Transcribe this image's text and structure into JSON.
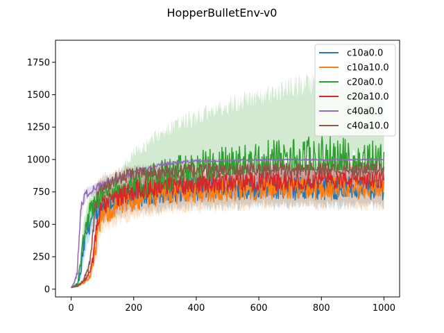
{
  "chart_data": {
    "type": "line",
    "title": "HopperBulletEnv-v0",
    "xlabel": "",
    "ylabel": "",
    "xlim": [
      -50,
      1050
    ],
    "ylim": [
      -60,
      1920
    ],
    "xticks": [
      0,
      200,
      400,
      600,
      800,
      1000
    ],
    "yticks": [
      0,
      250,
      500,
      750,
      1000,
      1250,
      1500,
      1750
    ],
    "grid": false,
    "legend_position": "top-right",
    "series": [
      {
        "name": "c10a0.0",
        "color": "#1f77b4",
        "x": [
          0,
          20,
          30,
          40,
          50,
          60,
          70,
          80,
          100,
          150,
          200,
          300,
          400,
          500,
          600,
          700,
          800,
          900,
          1000
        ],
        "y": [
          12,
          30,
          120,
          330,
          450,
          520,
          560,
          600,
          640,
          700,
          720,
          760,
          780,
          790,
          790,
          790,
          790,
          790,
          790
        ],
        "band_low": [
          8,
          15,
          60,
          180,
          300,
          380,
          420,
          450,
          480,
          540,
          560,
          580,
          600,
          600,
          610,
          600,
          610,
          600,
          600
        ],
        "band_high": [
          16,
          45,
          200,
          480,
          600,
          650,
          700,
          730,
          760,
          820,
          860,
          900,
          920,
          930,
          940,
          940,
          940,
          940,
          940
        ]
      },
      {
        "name": "c10a10.0",
        "color": "#ff7f0e",
        "x": [
          0,
          20,
          40,
          60,
          70,
          80,
          90,
          100,
          150,
          200,
          300,
          400,
          500,
          600,
          700,
          800,
          900,
          1000
        ],
        "y": [
          12,
          22,
          50,
          100,
          180,
          350,
          500,
          580,
          650,
          700,
          750,
          760,
          770,
          780,
          780,
          780,
          790,
          790
        ],
        "band_low": [
          8,
          15,
          35,
          70,
          120,
          220,
          350,
          420,
          480,
          520,
          560,
          580,
          590,
          600,
          600,
          600,
          600,
          600
        ],
        "band_high": [
          16,
          30,
          70,
          140,
          260,
          500,
          650,
          720,
          800,
          850,
          880,
          900,
          910,
          920,
          920,
          920,
          930,
          930
        ]
      },
      {
        "name": "c20a0.0",
        "color": "#2ca02c",
        "x": [
          0,
          20,
          30,
          40,
          50,
          60,
          70,
          80,
          100,
          150,
          200,
          250,
          300,
          400,
          500,
          600,
          700,
          800,
          900,
          1000
        ],
        "y": [
          12,
          40,
          200,
          400,
          530,
          600,
          650,
          690,
          740,
          790,
          820,
          850,
          880,
          920,
          960,
          980,
          990,
          990,
          990,
          990
        ],
        "band_low": [
          8,
          20,
          100,
          250,
          380,
          450,
          500,
          540,
          580,
          640,
          680,
          720,
          760,
          820,
          880,
          910,
          920,
          920,
          920,
          920
        ],
        "band_high": [
          16,
          60,
          300,
          540,
          680,
          750,
          800,
          830,
          870,
          920,
          1100,
          1200,
          1300,
          1400,
          1500,
          1550,
          1650,
          1700,
          1650,
          1550
        ]
      },
      {
        "name": "c20a10.0",
        "color": "#d62728",
        "x": [
          0,
          20,
          40,
          60,
          70,
          80,
          90,
          100,
          150,
          200,
          300,
          400,
          500,
          600,
          700,
          800,
          900,
          1000
        ],
        "y": [
          12,
          25,
          60,
          130,
          250,
          450,
          580,
          650,
          720,
          770,
          800,
          820,
          830,
          840,
          840,
          850,
          850,
          850
        ],
        "band_low": [
          8,
          15,
          40,
          90,
          170,
          320,
          450,
          520,
          580,
          620,
          650,
          670,
          680,
          690,
          690,
          700,
          700,
          700
        ],
        "band_high": [
          16,
          35,
          80,
          170,
          330,
          580,
          700,
          770,
          850,
          900,
          920,
          940,
          950,
          960,
          960,
          960,
          960,
          960
        ]
      },
      {
        "name": "c40a0.0",
        "color": "#9467bd",
        "x": [
          0,
          10,
          20,
          25,
          30,
          40,
          50,
          60,
          80,
          100,
          150,
          200,
          300,
          400,
          500,
          600,
          700,
          800,
          900,
          1000
        ],
        "y": [
          12,
          50,
          150,
          400,
          600,
          700,
          740,
          760,
          790,
          810,
          850,
          900,
          970,
          990,
          995,
          998,
          1000,
          1000,
          1000,
          1000
        ],
        "band_low": [
          8,
          30,
          90,
          300,
          500,
          620,
          680,
          700,
          740,
          770,
          810,
          860,
          940,
          970,
          980,
          985,
          990,
          990,
          990,
          990
        ],
        "band_high": [
          16,
          70,
          220,
          500,
          680,
          760,
          790,
          810,
          830,
          850,
          880,
          930,
          990,
          1005,
          1010,
          1010,
          1010,
          1010,
          1010,
          1010
        ]
      },
      {
        "name": "c40a10.0",
        "color": "#8c564b",
        "x": [
          0,
          20,
          40,
          60,
          70,
          80,
          90,
          100,
          150,
          200,
          300,
          400,
          500,
          600,
          700,
          800,
          900,
          1000
        ],
        "y": [
          12,
          25,
          70,
          200,
          450,
          700,
          760,
          800,
          860,
          890,
          910,
          920,
          925,
          930,
          930,
          930,
          930,
          930
        ],
        "band_low": [
          8,
          15,
          45,
          140,
          330,
          560,
          640,
          680,
          740,
          770,
          790,
          800,
          810,
          810,
          810,
          810,
          810,
          810
        ],
        "band_high": [
          16,
          35,
          95,
          260,
          560,
          820,
          880,
          900,
          950,
          970,
          985,
          990,
          995,
          995,
          995,
          995,
          995,
          995
        ]
      }
    ]
  }
}
